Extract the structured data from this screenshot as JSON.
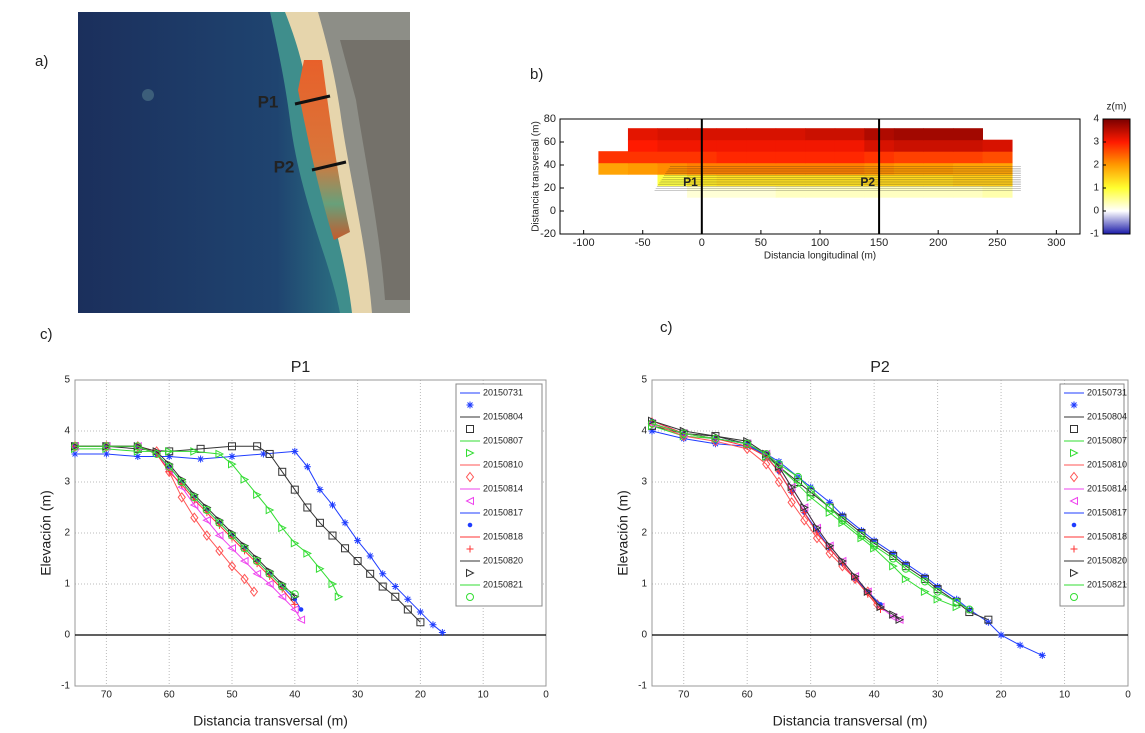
{
  "chart_data": [
    {
      "type": "image",
      "label": "a)",
      "annotations": [
        "P1",
        "P2"
      ]
    },
    {
      "type": "heatmap",
      "label": "b)",
      "xlabel": "Distancia longitudinal (m)",
      "ylabel": "Distancia transversal (m)",
      "xlim": [
        -120,
        320
      ],
      "ylim": [
        -20,
        80
      ],
      "xticks": [
        -100,
        -50,
        0,
        50,
        100,
        150,
        200,
        250,
        300
      ],
      "yticks": [
        -20,
        0,
        20,
        40,
        60,
        80
      ],
      "x": [
        -75,
        -50,
        -25,
        0,
        25,
        50,
        75,
        100,
        125,
        150,
        175,
        200,
        225,
        250
      ],
      "y": [
        17,
        27,
        37,
        47,
        57,
        67
      ],
      "z": [
        [
          null,
          null,
          null,
          0.2,
          0.2,
          0.2,
          0.3,
          0.3,
          0.3,
          0.3,
          0.3,
          0.3,
          0.3,
          0.4
        ],
        [
          null,
          null,
          0.9,
          1.2,
          1.3,
          1.3,
          1.3,
          1.3,
          1.3,
          1.4,
          1.4,
          1.4,
          1.5,
          1.5
        ],
        [
          1.9,
          2.0,
          2.1,
          2.2,
          2.2,
          2.2,
          2.2,
          2.2,
          2.2,
          2.1,
          2.0,
          2.0,
          1.9,
          1.9
        ],
        [
          2.8,
          2.8,
          2.8,
          2.8,
          2.9,
          2.9,
          2.9,
          2.9,
          2.9,
          2.8,
          2.7,
          2.7,
          2.7,
          2.6
        ],
        [
          null,
          3.0,
          3.1,
          3.1,
          3.1,
          3.1,
          3.1,
          3.1,
          3.1,
          3.3,
          3.4,
          3.4,
          3.4,
          3.3
        ],
        [
          null,
          3.2,
          3.3,
          3.3,
          3.3,
          3.3,
          3.3,
          3.4,
          3.4,
          3.6,
          3.7,
          3.7,
          3.7,
          null
        ]
      ],
      "colormap": [
        "#1a1aa8",
        "#ffffff",
        "#ffff30",
        "#ff9a00",
        "#ff1a00",
        "#7a0000"
      ],
      "colorbar": {
        "title": "z(m)",
        "lim": [
          -1,
          4
        ],
        "ticks": [
          -1,
          0,
          1,
          2,
          3,
          4
        ]
      },
      "vlines": [
        {
          "x": 0,
          "label": "P1"
        },
        {
          "x": 150,
          "label": "P2"
        }
      ]
    },
    {
      "type": "line",
      "label": "c)",
      "title": "P1",
      "xlabel": "Distancia transversal (m)",
      "ylabel": "Elevación (m)",
      "xlim": [
        75,
        0
      ],
      "ylim": [
        -1,
        5
      ],
      "xticks": [
        70,
        60,
        50,
        40,
        30,
        20,
        10,
        0
      ],
      "yticks": [
        -1,
        0,
        1,
        2,
        3,
        4,
        5
      ],
      "grid": true,
      "hline": 0,
      "legend": "upper right",
      "series": [
        {
          "name": "20150731",
          "color": "#1f3cff",
          "marker": "*",
          "x": [
            75,
            70,
            65,
            60,
            55,
            50,
            45,
            40,
            38,
            36,
            34,
            32,
            30,
            28,
            26,
            24,
            22,
            20,
            18,
            16.5
          ],
          "values": [
            3.55,
            3.55,
            3.5,
            3.5,
            3.45,
            3.5,
            3.55,
            3.6,
            3.3,
            2.85,
            2.55,
            2.2,
            1.85,
            1.55,
            1.2,
            0.95,
            0.7,
            0.45,
            0.2,
            0.05
          ]
        },
        {
          "name": "20150804",
          "color": "#333333",
          "marker": "s",
          "x": [
            75,
            70,
            65,
            60,
            55,
            50,
            46,
            44,
            42,
            40,
            38,
            36,
            34,
            32,
            30,
            28,
            26,
            24,
            22,
            20
          ],
          "values": [
            3.7,
            3.7,
            3.65,
            3.6,
            3.65,
            3.7,
            3.7,
            3.55,
            3.2,
            2.85,
            2.5,
            2.2,
            1.95,
            1.7,
            1.45,
            1.2,
            0.95,
            0.75,
            0.5,
            0.25
          ]
        },
        {
          "name": "20150807",
          "color": "#33dd33",
          "marker": ">",
          "x": [
            75,
            70,
            65,
            60,
            56,
            52,
            50,
            48,
            46,
            44,
            42,
            40,
            38,
            36,
            34,
            33
          ],
          "values": [
            3.65,
            3.65,
            3.6,
            3.6,
            3.6,
            3.55,
            3.35,
            3.05,
            2.75,
            2.45,
            2.1,
            1.8,
            1.6,
            1.3,
            1.0,
            0.75
          ]
        },
        {
          "name": "20150810",
          "color": "#ff5555",
          "marker": "d",
          "x": [
            75,
            70,
            65,
            62,
            60,
            58,
            56,
            54,
            52,
            50,
            48,
            46.5
          ],
          "values": [
            3.7,
            3.7,
            3.7,
            3.6,
            3.2,
            2.7,
            2.3,
            1.95,
            1.65,
            1.35,
            1.1,
            0.85
          ]
        },
        {
          "name": "20150814",
          "color": "#ee44ee",
          "marker": "<",
          "x": [
            75,
            70,
            65,
            62,
            60,
            58,
            56,
            54,
            52,
            50,
            48,
            46,
            44,
            42,
            40,
            39
          ],
          "values": [
            3.7,
            3.7,
            3.7,
            3.55,
            3.25,
            2.9,
            2.55,
            2.25,
            1.95,
            1.7,
            1.45,
            1.2,
            1.0,
            0.75,
            0.5,
            0.3
          ]
        },
        {
          "name": "20150817",
          "color": "#1f3cff",
          "marker": ".",
          "x": [
            75,
            70,
            65,
            62,
            60,
            58,
            56,
            54,
            52,
            50,
            48,
            46,
            44,
            42,
            40,
            39
          ],
          "values": [
            3.7,
            3.7,
            3.7,
            3.55,
            3.3,
            3.0,
            2.7,
            2.45,
            2.2,
            1.95,
            1.7,
            1.45,
            1.2,
            0.95,
            0.7,
            0.5
          ]
        },
        {
          "name": "20150818",
          "color": "#ff3333",
          "marker": "+",
          "x": [
            75,
            70,
            65,
            62,
            60,
            58,
            56,
            54,
            52,
            50,
            48,
            46,
            44,
            42,
            40
          ],
          "values": [
            3.7,
            3.7,
            3.7,
            3.55,
            3.2,
            2.95,
            2.65,
            2.4,
            2.15,
            1.9,
            1.65,
            1.4,
            1.15,
            0.9,
            0.6
          ]
        },
        {
          "name": "20150820",
          "color": "#333333",
          "marker": ">",
          "x": [
            75,
            70,
            65,
            62,
            60,
            58,
            56,
            54,
            52,
            50,
            48,
            46,
            44,
            42,
            40
          ],
          "values": [
            3.7,
            3.7,
            3.7,
            3.6,
            3.35,
            3.05,
            2.75,
            2.5,
            2.25,
            2.0,
            1.75,
            1.5,
            1.25,
            1.0,
            0.75
          ]
        },
        {
          "name": "20150821",
          "color": "#33dd33",
          "marker": "o",
          "x": [
            75,
            70,
            65,
            62,
            60,
            58,
            56,
            54,
            52,
            50,
            48,
            46,
            44,
            42,
            40
          ],
          "values": [
            3.7,
            3.7,
            3.7,
            3.55,
            3.3,
            3.0,
            2.7,
            2.45,
            2.2,
            1.95,
            1.7,
            1.45,
            1.2,
            0.95,
            0.8
          ]
        }
      ]
    },
    {
      "type": "line",
      "label": "c)",
      "title": "P2",
      "xlabel": "Distancia transversal (m)",
      "ylabel": "Elevación (m)",
      "xlim": [
        75,
        0
      ],
      "ylim": [
        -1,
        5
      ],
      "xticks": [
        70,
        60,
        50,
        40,
        30,
        20,
        10,
        0
      ],
      "yticks": [
        -1,
        0,
        1,
        2,
        3,
        4,
        5
      ],
      "grid": true,
      "hline": 0,
      "legend": "upper right",
      "series": [
        {
          "name": "20150731",
          "color": "#1f3cff",
          "marker": "*",
          "x": [
            75,
            70,
            65,
            60,
            57,
            55,
            52,
            50,
            47,
            45,
            42,
            40,
            37,
            35,
            32,
            30,
            27,
            25,
            22,
            20,
            17,
            13.5
          ],
          "values": [
            4.0,
            3.85,
            3.75,
            3.7,
            3.55,
            3.4,
            3.1,
            2.9,
            2.6,
            2.35,
            2.05,
            1.85,
            1.6,
            1.4,
            1.15,
            0.95,
            0.7,
            0.5,
            0.25,
            0.0,
            -0.2,
            -0.4
          ]
        },
        {
          "name": "20150804",
          "color": "#333333",
          "marker": "s",
          "x": [
            75,
            70,
            65,
            60,
            57,
            55,
            52,
            50,
            47,
            45,
            42,
            40,
            37,
            35,
            32,
            30,
            27,
            25,
            22
          ],
          "values": [
            4.1,
            3.95,
            3.9,
            3.75,
            3.5,
            3.3,
            3.0,
            2.8,
            2.5,
            2.3,
            2.0,
            1.8,
            1.55,
            1.35,
            1.1,
            0.9,
            0.65,
            0.45,
            0.3
          ]
        },
        {
          "name": "20150807",
          "color": "#33dd33",
          "marker": ">",
          "x": [
            75,
            70,
            65,
            60,
            57,
            55,
            52,
            50,
            47,
            45,
            42,
            40,
            37,
            35,
            32,
            30,
            27
          ],
          "values": [
            4.1,
            3.9,
            3.85,
            3.75,
            3.5,
            3.3,
            2.95,
            2.7,
            2.4,
            2.2,
            1.9,
            1.7,
            1.35,
            1.1,
            0.85,
            0.7,
            0.55
          ]
        },
        {
          "name": "20150810",
          "color": "#ff5555",
          "marker": "d",
          "x": [
            75,
            70,
            65,
            60,
            57,
            55,
            53,
            51,
            49,
            47,
            45,
            43,
            41,
            39.5
          ],
          "values": [
            4.15,
            3.9,
            3.8,
            3.65,
            3.35,
            3.0,
            2.6,
            2.25,
            1.9,
            1.6,
            1.35,
            1.1,
            0.85,
            0.6
          ]
        },
        {
          "name": "20150814",
          "color": "#ee44ee",
          "marker": "<",
          "x": [
            75,
            70,
            65,
            60,
            57,
            55,
            53,
            51,
            49,
            47,
            45,
            43,
            41,
            39,
            37,
            36
          ],
          "values": [
            4.15,
            3.95,
            3.85,
            3.75,
            3.55,
            3.3,
            2.9,
            2.5,
            2.1,
            1.75,
            1.45,
            1.15,
            0.85,
            0.55,
            0.35,
            0.3
          ]
        },
        {
          "name": "20150817",
          "color": "#1f3cff",
          "marker": ".",
          "x": [
            75,
            70,
            65,
            60,
            57,
            55,
            53,
            51,
            49,
            47,
            45,
            43,
            41,
            39
          ],
          "values": [
            4.2,
            3.95,
            3.85,
            3.75,
            3.5,
            3.2,
            2.8,
            2.4,
            2.05,
            1.7,
            1.4,
            1.1,
            0.85,
            0.6
          ]
        },
        {
          "name": "20150818",
          "color": "#ff3333",
          "marker": "+",
          "x": [
            75,
            70,
            65,
            60,
            57,
            55,
            53,
            51,
            49,
            47,
            45,
            43,
            41,
            39
          ],
          "values": [
            4.2,
            3.95,
            3.85,
            3.7,
            3.5,
            3.2,
            2.8,
            2.4,
            2.0,
            1.7,
            1.4,
            1.1,
            0.8,
            0.5
          ]
        },
        {
          "name": "20150820",
          "color": "#333333",
          "marker": ">",
          "x": [
            75,
            70,
            65,
            60,
            57,
            55,
            53,
            51,
            49,
            47,
            45,
            43,
            41,
            39,
            37,
            36
          ],
          "values": [
            4.2,
            4.0,
            3.9,
            3.8,
            3.55,
            3.3,
            2.9,
            2.5,
            2.1,
            1.75,
            1.45,
            1.15,
            0.85,
            0.55,
            0.4,
            0.3
          ]
        },
        {
          "name": "20150821",
          "color": "#33dd33",
          "marker": "o",
          "x": [
            75,
            70,
            65,
            60,
            57,
            55,
            52,
            50,
            47,
            45,
            42,
            40,
            37,
            35,
            32,
            30,
            27,
            25
          ],
          "values": [
            4.15,
            3.95,
            3.85,
            3.75,
            3.55,
            3.35,
            3.1,
            2.85,
            2.5,
            2.25,
            1.95,
            1.75,
            1.5,
            1.3,
            1.05,
            0.85,
            0.65,
            0.5
          ]
        }
      ]
    }
  ]
}
